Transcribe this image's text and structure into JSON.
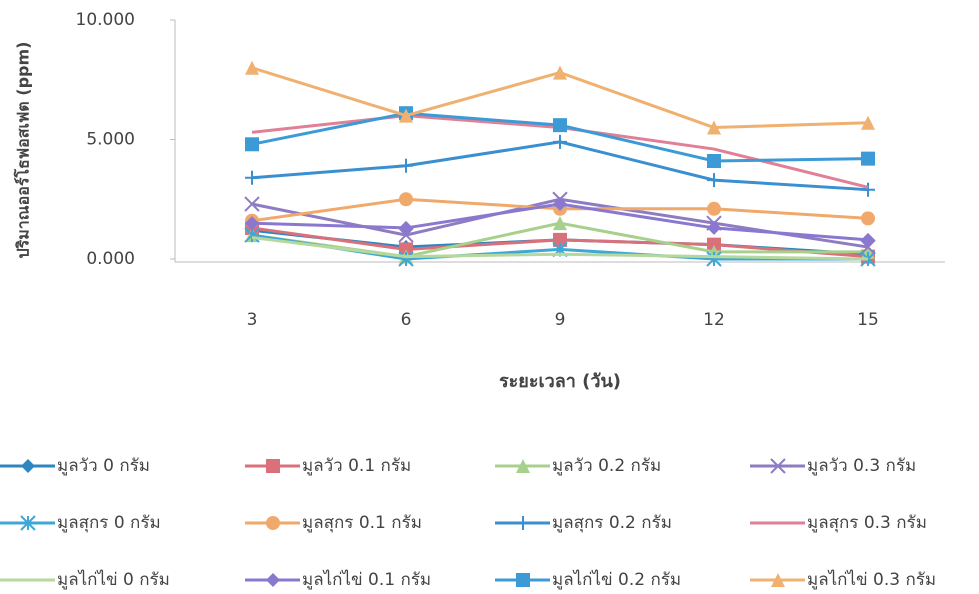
{
  "chart_data": {
    "type": "line",
    "y_label": "ปริมาณออร์โธฟอสเฟต (ppm)",
    "x_label": "ระยะเวลา (วัน)",
    "categories": [
      "3",
      "6",
      "9",
      "12",
      "15"
    ],
    "ylim": [
      0,
      10
    ],
    "yticks": [
      {
        "value": 0,
        "label": "0.000"
      },
      {
        "value": 5,
        "label": "5.000"
      },
      {
        "value": 10,
        "label": "10.000"
      }
    ],
    "series": [
      {
        "name": "มูลวัว 0 กรัม",
        "color": "#2e86c1",
        "marker": "diamond",
        "values": [
          1.2,
          0.5,
          0.8,
          0.6,
          0.2
        ]
      },
      {
        "name": "มูลวัว 0.1 กรัม",
        "color": "#d9707a",
        "marker": "square",
        "values": [
          1.3,
          0.4,
          0.8,
          0.6,
          0.1
        ]
      },
      {
        "name": "มูลวัว 0.2 กรัม",
        "color": "#a8d08d",
        "marker": "triangle",
        "values": [
          1.0,
          0.1,
          1.5,
          0.3,
          0.3
        ]
      },
      {
        "name": "มูลวัว 0.3 กรัม",
        "color": "#8e7cc3",
        "marker": "x",
        "values": [
          2.3,
          1.0,
          2.5,
          1.5,
          0.5
        ]
      },
      {
        "name": "มูลสุกร 0 กรัม",
        "color": "#3fa7d6",
        "marker": "asterisk",
        "values": [
          1.0,
          0.0,
          0.4,
          0.0,
          0.0
        ]
      },
      {
        "name": "มูลสุกร 0.1 กรัม",
        "color": "#f0a96b",
        "marker": "circle",
        "values": [
          1.6,
          2.5,
          2.1,
          2.1,
          1.7
        ]
      },
      {
        "name": "มูลสุกร  0.2 กรัม",
        "color": "#3a8fd0",
        "marker": "plus",
        "values": [
          3.4,
          3.9,
          4.9,
          3.3,
          2.9
        ]
      },
      {
        "name": "มูลสุกร 0.3 กรัม",
        "color": "#e07f96",
        "marker": "none",
        "values": [
          5.3,
          6.0,
          5.5,
          4.6,
          3.0
        ]
      },
      {
        "name": "มูลไก่ไข่ 0 กรัม",
        "color": "#b5d99c",
        "marker": "none",
        "values": [
          0.9,
          0.1,
          0.2,
          0.1,
          0.0
        ]
      },
      {
        "name": "มูลไก่ไข่ 0.1 กรัม",
        "color": "#8a78d0",
        "marker": "diamond",
        "values": [
          1.5,
          1.3,
          2.3,
          1.3,
          0.8
        ]
      },
      {
        "name": "มูลไก่ไข่  0.2 กรัม",
        "color": "#3c9ad6",
        "marker": "square",
        "values": [
          4.8,
          6.1,
          5.6,
          4.1,
          4.2
        ]
      },
      {
        "name": "มูลไก่ไข่  0.3 กรัม",
        "color": "#f0b070",
        "marker": "triangle",
        "values": [
          8.0,
          6.0,
          7.8,
          5.5,
          5.7
        ]
      }
    ]
  }
}
